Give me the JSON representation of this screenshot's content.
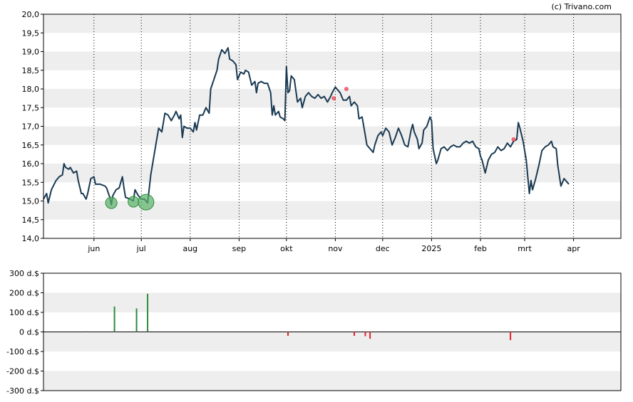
{
  "credit": "(c) Trivano.com",
  "colors": {
    "price_line": "#1a3a52",
    "band": "#eeeeee",
    "buy": "#2e8b3e",
    "buy_marker": "#59b267",
    "sell": "#e8202a",
    "sell_marker": "#f07080",
    "frame": "#000000"
  },
  "chart_data": [
    {
      "type": "line",
      "title": "",
      "ylim": [
        14.0,
        20.0
      ],
      "y_ticks": [
        "20,0",
        "19,5",
        "19,0",
        "18,5",
        "18,0",
        "17,5",
        "17,0",
        "16,5",
        "16,0",
        "15,5",
        "15,0",
        "14,5",
        "14,0"
      ],
      "x_range": [
        0,
        366
      ],
      "months": [
        {
          "label": "jun",
          "day": 32
        },
        {
          "label": "jul",
          "day": 62
        },
        {
          "label": "aug",
          "day": 93
        },
        {
          "label": "sep",
          "day": 124
        },
        {
          "label": "okt",
          "day": 154
        },
        {
          "label": "nov",
          "day": 185
        },
        {
          "label": "dec",
          "day": 215
        },
        {
          "label": "2025",
          "day": 246
        },
        {
          "label": "feb",
          "day": 277
        },
        {
          "label": "mrt",
          "day": 305
        },
        {
          "label": "apr",
          "day": 336
        }
      ],
      "series": [
        {
          "points": [
            [
              0,
              15.05
            ],
            [
              2,
              15.2
            ],
            [
              3,
              14.95
            ],
            [
              5,
              15.3
            ],
            [
              8,
              15.55
            ],
            [
              10,
              15.65
            ],
            [
              12,
              15.7
            ],
            [
              13,
              16.0
            ],
            [
              14,
              15.9
            ],
            [
              16,
              15.85
            ],
            [
              17,
              15.9
            ],
            [
              19,
              15.75
            ],
            [
              21,
              15.8
            ],
            [
              22,
              15.55
            ],
            [
              24,
              15.2
            ],
            [
              25,
              15.2
            ],
            [
              27,
              15.05
            ],
            [
              28,
              15.2
            ],
            [
              30,
              15.6
            ],
            [
              32,
              15.65
            ],
            [
              33,
              15.45
            ],
            [
              36,
              15.45
            ],
            [
              39,
              15.4
            ],
            [
              40,
              15.35
            ],
            [
              42,
              15.1
            ],
            [
              43,
              14.9
            ],
            [
              44,
              15.15
            ],
            [
              46,
              15.3
            ],
            [
              48,
              15.35
            ],
            [
              50,
              15.65
            ],
            [
              51,
              15.35
            ],
            [
              52,
              15.1
            ],
            [
              55,
              15.05
            ],
            [
              57,
              15.0
            ],
            [
              58,
              15.3
            ],
            [
              60,
              15.15
            ],
            [
              62,
              15.05
            ],
            [
              64,
              15.05
            ],
            [
              66,
              14.95
            ],
            [
              68,
              15.7
            ],
            [
              70,
              16.2
            ],
            [
              72,
              16.7
            ],
            [
              73,
              16.95
            ],
            [
              74,
              16.9
            ],
            [
              75,
              16.85
            ],
            [
              77,
              17.35
            ],
            [
              79,
              17.3
            ],
            [
              81,
              17.15
            ],
            [
              83,
              17.3
            ],
            [
              84,
              17.4
            ],
            [
              86,
              17.2
            ],
            [
              87,
              17.3
            ],
            [
              88,
              16.7
            ],
            [
              89,
              17.0
            ],
            [
              91,
              16.95
            ],
            [
              93,
              16.95
            ],
            [
              95,
              16.85
            ],
            [
              96,
              17.1
            ],
            [
              97,
              16.9
            ],
            [
              99,
              17.3
            ],
            [
              101,
              17.3
            ],
            [
              103,
              17.5
            ],
            [
              105,
              17.35
            ],
            [
              106,
              18.0
            ],
            [
              108,
              18.25
            ],
            [
              110,
              18.5
            ],
            [
              111,
              18.8
            ],
            [
              113,
              19.05
            ],
            [
              115,
              18.95
            ],
            [
              117,
              19.1
            ],
            [
              118,
              18.8
            ],
            [
              120,
              18.75
            ],
            [
              122,
              18.65
            ],
            [
              123,
              18.25
            ],
            [
              125,
              18.45
            ],
            [
              127,
              18.4
            ],
            [
              128,
              18.5
            ],
            [
              130,
              18.45
            ],
            [
              132,
              18.1
            ],
            [
              134,
              18.2
            ],
            [
              135,
              17.9
            ],
            [
              136,
              18.15
            ],
            [
              138,
              18.2
            ],
            [
              140,
              18.15
            ],
            [
              142,
              18.15
            ],
            [
              144,
              17.9
            ],
            [
              145,
              17.3
            ],
            [
              146,
              17.55
            ],
            [
              147,
              17.3
            ],
            [
              149,
              17.4
            ],
            [
              150,
              17.25
            ],
            [
              152,
              17.2
            ],
            [
              153,
              17.15
            ],
            [
              154,
              18.6
            ],
            [
              155,
              17.9
            ],
            [
              156,
              17.95
            ],
            [
              157,
              18.35
            ],
            [
              159,
              18.25
            ],
            [
              160,
              17.95
            ],
            [
              161,
              17.65
            ],
            [
              163,
              17.75
            ],
            [
              164,
              17.5
            ],
            [
              166,
              17.8
            ],
            [
              168,
              17.9
            ],
            [
              170,
              17.8
            ],
            [
              172,
              17.75
            ],
            [
              174,
              17.85
            ],
            [
              176,
              17.75
            ],
            [
              178,
              17.8
            ],
            [
              180,
              17.65
            ],
            [
              182,
              17.8
            ],
            [
              183,
              17.9
            ],
            [
              185,
              18.05
            ],
            [
              186,
              18.0
            ],
            [
              188,
              17.9
            ],
            [
              190,
              17.7
            ],
            [
              192,
              17.7
            ],
            [
              194,
              17.8
            ],
            [
              195,
              17.55
            ],
            [
              197,
              17.65
            ],
            [
              199,
              17.55
            ],
            [
              200,
              17.2
            ],
            [
              202,
              17.25
            ],
            [
              204,
              16.75
            ],
            [
              205,
              16.5
            ],
            [
              207,
              16.4
            ],
            [
              209,
              16.3
            ],
            [
              210,
              16.5
            ],
            [
              212,
              16.75
            ],
            [
              214,
              16.85
            ],
            [
              215,
              16.75
            ],
            [
              217,
              16.95
            ],
            [
              219,
              16.85
            ],
            [
              221,
              16.5
            ],
            [
              223,
              16.7
            ],
            [
              225,
              16.95
            ],
            [
              227,
              16.75
            ],
            [
              229,
              16.5
            ],
            [
              231,
              16.45
            ],
            [
              233,
              16.9
            ],
            [
              234,
              17.05
            ],
            [
              235,
              16.85
            ],
            [
              237,
              16.65
            ],
            [
              238,
              16.4
            ],
            [
              240,
              16.55
            ],
            [
              241,
              16.9
            ],
            [
              243,
              17.0
            ],
            [
              245,
              17.25
            ],
            [
              246,
              17.15
            ],
            [
              247,
              16.4
            ],
            [
              249,
              16.0
            ],
            [
              250,
              16.1
            ],
            [
              252,
              16.4
            ],
            [
              254,
              16.45
            ],
            [
              256,
              16.35
            ],
            [
              258,
              16.45
            ],
            [
              260,
              16.5
            ],
            [
              262,
              16.45
            ],
            [
              264,
              16.45
            ],
            [
              266,
              16.55
            ],
            [
              268,
              16.6
            ],
            [
              270,
              16.55
            ],
            [
              272,
              16.6
            ],
            [
              274,
              16.45
            ],
            [
              276,
              16.4
            ],
            [
              277,
              16.2
            ],
            [
              278,
              16.1
            ],
            [
              280,
              15.75
            ],
            [
              282,
              16.1
            ],
            [
              284,
              16.25
            ],
            [
              286,
              16.3
            ],
            [
              288,
              16.45
            ],
            [
              290,
              16.35
            ],
            [
              292,
              16.4
            ],
            [
              294,
              16.55
            ],
            [
              296,
              16.45
            ],
            [
              298,
              16.6
            ],
            [
              300,
              16.65
            ],
            [
              301,
              17.1
            ],
            [
              302,
              16.95
            ],
            [
              304,
              16.6
            ],
            [
              306,
              16.1
            ],
            [
              308,
              15.2
            ],
            [
              309,
              15.55
            ],
            [
              310,
              15.3
            ],
            [
              312,
              15.6
            ],
            [
              314,
              15.95
            ],
            [
              316,
              16.35
            ],
            [
              318,
              16.45
            ],
            [
              320,
              16.5
            ],
            [
              322,
              16.6
            ],
            [
              323,
              16.45
            ],
            [
              325,
              16.4
            ],
            [
              326,
              15.95
            ],
            [
              328,
              15.4
            ],
            [
              330,
              15.6
            ],
            [
              332,
              15.5
            ],
            [
              333,
              15.45
            ]
          ]
        }
      ],
      "markers": {
        "buy": [
          {
            "day": 43,
            "value": 14.95
          },
          {
            "day": 57,
            "value": 14.98
          },
          {
            "day": 65,
            "value": 14.97
          }
        ],
        "sell": [
          {
            "day": 184,
            "value": 17.75
          },
          {
            "day": 192,
            "value": 18.0
          },
          {
            "day": 298,
            "value": 16.65
          }
        ]
      }
    },
    {
      "type": "bar",
      "title": "",
      "ylim": [
        -300,
        300
      ],
      "y_ticks": [
        "300 d.$",
        "200 d.$",
        "100 d.$",
        "0 d.$",
        "-100 d.$",
        "-200 d.$",
        "-300 d.$"
      ],
      "bars": [
        {
          "day": 27,
          "value": 3
        },
        {
          "day": 45,
          "value": 130
        },
        {
          "day": 59,
          "value": 120
        },
        {
          "day": 66,
          "value": 195
        },
        {
          "day": 155,
          "value": -20
        },
        {
          "day": 197,
          "value": -20
        },
        {
          "day": 204,
          "value": -22
        },
        {
          "day": 207,
          "value": -35
        },
        {
          "day": 296,
          "value": -42
        }
      ]
    }
  ]
}
